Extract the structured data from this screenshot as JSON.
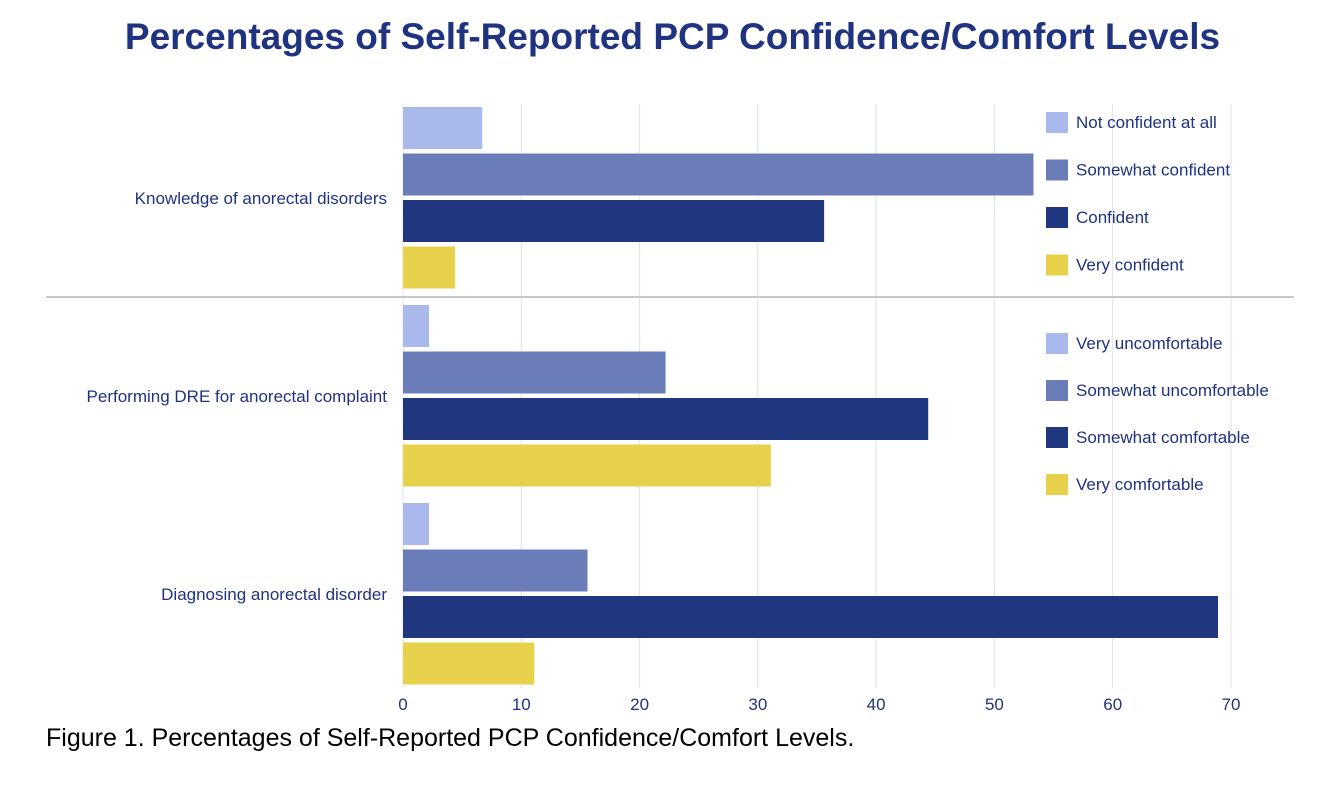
{
  "title": "Percentages of Self-Reported PCP Confidence/Comfort Levels",
  "caption": "Figure 1. Percentages of Self-Reported PCP Confidence/Comfort Levels.",
  "colors": {
    "title": "#1f3380",
    "text": "#1f3380",
    "level1": "#a9b9ec",
    "level2": "#6b7db8",
    "level3": "#20367f",
    "level4": "#e8d14a",
    "grid": "#e2e2e2",
    "separator": "#c8c8c8"
  },
  "chart_data": {
    "type": "bar",
    "orientation": "horizontal",
    "categories": [
      "Knowledge of anorectal disorders",
      "Performing DRE for anorectal complaint",
      "Diagnosing anorectal disorder"
    ],
    "series_by_category": [
      [
        6.7,
        53.3,
        35.6,
        4.4
      ],
      [
        2.2,
        22.2,
        44.4,
        31.1
      ],
      [
        2.2,
        15.6,
        68.9,
        11.1
      ]
    ],
    "legends": [
      {
        "items": [
          {
            "name": "Not confident at all",
            "color_key": "level1"
          },
          {
            "name": "Somewhat confident",
            "color_key": "level2"
          },
          {
            "name": "Confident",
            "color_key": "level3"
          },
          {
            "name": "Very confident",
            "color_key": "level4"
          }
        ]
      },
      {
        "items": [
          {
            "name": "Very uncomfortable",
            "color_key": "level1"
          },
          {
            "name": "Somewhat uncomfortable",
            "color_key": "level2"
          },
          {
            "name": "Somewhat comfortable",
            "color_key": "level3"
          },
          {
            "name": "Very comfortable",
            "color_key": "level4"
          }
        ]
      }
    ],
    "xlim": [
      0,
      70
    ],
    "xticks": [
      "0",
      "10",
      "20",
      "30",
      "40",
      "50",
      "60",
      "70"
    ],
    "grid": true,
    "legend_position": "right"
  }
}
